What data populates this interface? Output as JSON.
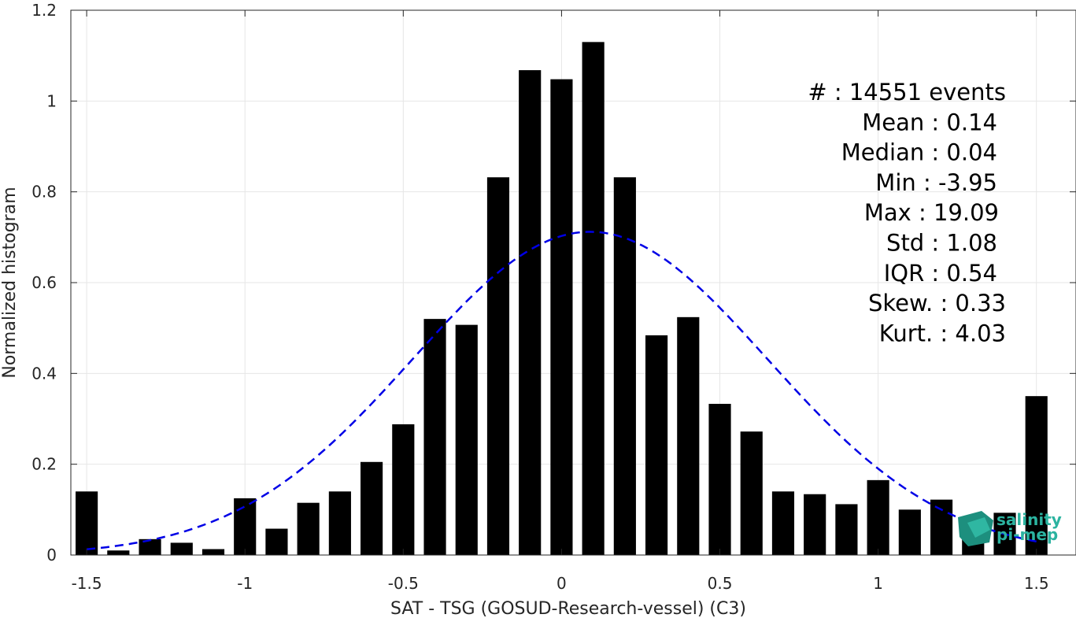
{
  "chart_data": {
    "type": "bar",
    "xlabel": "SAT - TSG (GOSUD-Research-vessel) (C3)",
    "ylabel": "Normalized histogram",
    "xlim": [
      -1.55,
      1.625
    ],
    "ylim": [
      0,
      1.2
    ],
    "grid": true,
    "x_ticks": [
      -1.5,
      -1,
      -0.5,
      0,
      0.5,
      1,
      1.5
    ],
    "x_tick_labels": [
      "-1.5",
      "-1",
      "-0.5",
      "0",
      "0.5",
      "1",
      "1.5"
    ],
    "y_ticks": [
      0,
      0.2,
      0.4,
      0.6,
      0.8,
      1,
      1.2
    ],
    "y_tick_labels": [
      "0",
      "0.2",
      "0.4",
      "0.6",
      "0.8",
      "1",
      "1.2"
    ],
    "bar_width": 0.07,
    "bar_color": "#000000",
    "bins": [
      -1.5,
      -1.4,
      -1.3,
      -1.2,
      -1.1,
      -1.0,
      -0.9,
      -0.8,
      -0.7,
      -0.6,
      -0.5,
      -0.4,
      -0.3,
      -0.2,
      -0.1,
      0.0,
      0.1,
      0.2,
      0.3,
      0.4,
      0.5,
      0.6,
      0.7,
      0.8,
      0.9,
      1.0,
      1.1,
      1.2,
      1.3,
      1.4,
      1.5
    ],
    "values": [
      0.14,
      0.01,
      0.035,
      0.027,
      0.013,
      0.125,
      0.058,
      0.115,
      0.14,
      0.205,
      0.288,
      0.52,
      0.507,
      0.832,
      1.068,
      1.048,
      1.13,
      0.832,
      0.484,
      0.524,
      0.333,
      0.272,
      0.14,
      0.134,
      0.112,
      0.165,
      0.1,
      0.122,
      0.077,
      0.093,
      0.35
    ],
    "fit_curve": {
      "type": "gaussian",
      "mean": 0.09,
      "std": 0.56,
      "peak": 0.712,
      "x_range": [
        -1.5,
        1.5
      ],
      "color": "#0000e6",
      "style": "dashed"
    },
    "annotation_lines": [
      "#  : 14551 events",
      "Mean : 0.14",
      "Median : 0.04",
      "Min : -3.95",
      "Max : 19.09",
      "Std : 1.08",
      "IQR : 0.54",
      "Skew. : 0.33",
      "Kurt. : 4.03"
    ]
  },
  "logo": {
    "line1": "salinity",
    "line2": "pi-mep",
    "color": "#2bb3a0"
  }
}
